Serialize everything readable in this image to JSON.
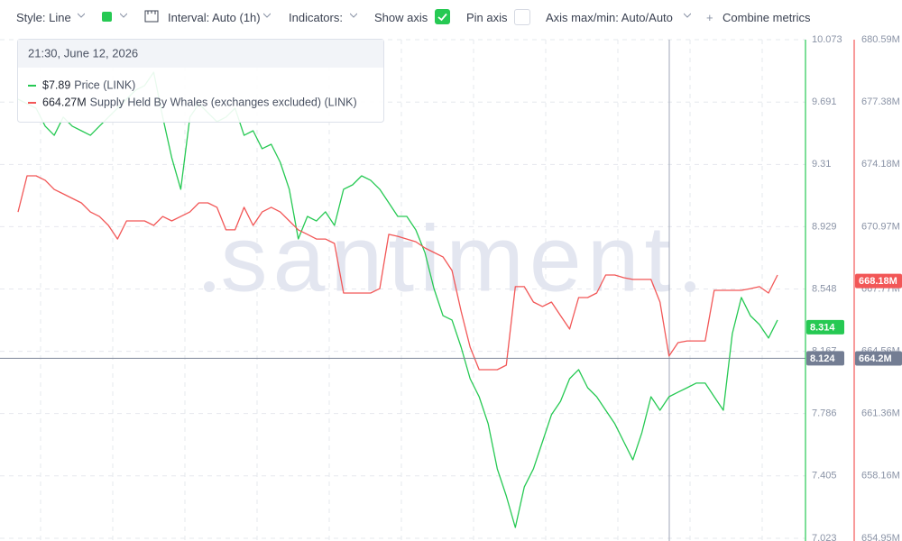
{
  "toolbar": {
    "style": "Style: Line",
    "interval": "Interval: Auto (1h)",
    "indicators": "Indicators:",
    "show_axis": "Show axis",
    "pin_axis": "Pin axis",
    "axis_max_min": "Axis max/min: Auto/Auto",
    "combine_metrics": "Combine metrics"
  },
  "chart_data": {
    "type": "line",
    "watermark": "santiment",
    "grid": true,
    "ylim": [
      7.023,
      10.073
    ],
    "yticks": [
      10.073,
      9.691,
      9.31,
      8.929,
      8.548,
      8.167,
      7.786,
      7.405,
      7.023
    ],
    "y2lim": [
      654.95,
      680.59
    ],
    "y2ticks": [
      {
        "value": 680.59,
        "label": "680.59M"
      },
      {
        "value": 677.38,
        "label": "677.38M"
      },
      {
        "value": 674.18,
        "label": "674.18M"
      },
      {
        "value": 670.97,
        "label": "670.97M"
      },
      {
        "value": 667.77,
        "label": "667.77M"
      },
      {
        "value": 664.56,
        "label": "664.56M"
      },
      {
        "value": 661.36,
        "label": "661.36M"
      },
      {
        "value": 658.16,
        "label": "658.16M"
      },
      {
        "value": 654.95,
        "label": "654.95M"
      }
    ],
    "series": [
      {
        "name": "Price (LINK)",
        "color": "#26c953",
        "values": [
          9.709,
          9.681,
          9.654,
          9.544,
          9.488,
          9.599,
          9.544,
          9.516,
          9.488,
          9.544,
          9.599,
          9.654,
          9.709,
          9.764,
          9.792,
          9.874,
          9.599,
          9.351,
          9.158,
          9.599,
          9.681,
          9.626,
          9.571,
          9.599,
          9.654,
          9.488,
          9.516,
          9.406,
          9.433,
          9.323,
          9.158,
          8.854,
          8.992,
          8.964,
          9.02,
          8.937,
          9.158,
          9.185,
          9.24,
          9.213,
          9.158,
          9.075,
          8.992,
          8.992,
          8.909,
          8.771,
          8.551,
          8.385,
          8.358,
          8.192,
          7.999,
          7.889,
          7.724,
          7.448,
          7.282,
          7.089,
          7.338,
          7.448,
          7.613,
          7.779,
          7.861,
          7.999,
          8.055,
          7.944,
          7.889,
          7.806,
          7.724,
          7.613,
          7.503,
          7.669,
          7.889,
          7.806,
          7.889,
          7.917,
          7.944,
          7.972,
          7.972,
          7.889,
          7.806,
          8.275,
          8.496,
          8.385,
          8.33,
          8.248,
          8.358
        ]
      },
      {
        "name": "Supply Held By Whales (exchanges excluded) (LINK)",
        "color": "#f25757",
        "axis": "y2",
        "values": [
          671.73,
          673.59,
          673.59,
          673.36,
          672.89,
          672.66,
          672.43,
          672.2,
          671.73,
          671.5,
          671.04,
          670.34,
          671.27,
          671.27,
          671.27,
          671.04,
          671.5,
          671.27,
          671.5,
          671.73,
          672.2,
          672.2,
          671.97,
          670.81,
          670.81,
          671.97,
          671.04,
          671.73,
          671.97,
          671.73,
          671.27,
          670.81,
          670.58,
          670.34,
          670.34,
          670.11,
          667.56,
          667.56,
          667.56,
          667.56,
          667.79,
          670.58,
          670.48,
          670.34,
          670.2,
          669.88,
          669.65,
          669.42,
          668.72,
          666.63,
          664.78,
          663.62,
          663.62,
          663.62,
          663.85,
          667.89,
          667.89,
          667.1,
          666.87,
          667.1,
          666.4,
          665.71,
          667.33,
          667.33,
          667.56,
          668.49,
          668.49,
          668.35,
          668.26,
          668.26,
          668.26,
          667.1,
          664.32,
          665.01,
          665.1,
          665.1,
          665.1,
          667.7,
          667.7,
          667.7,
          667.7,
          667.79,
          667.89,
          667.56,
          668.49
        ]
      }
    ],
    "axis_badges": [
      {
        "value": 8.314,
        "label": "8.314",
        "axis": "y",
        "color": "#26c953"
      },
      {
        "value": 8.124,
        "label": "8.124",
        "axis": "y",
        "color": "#737d93",
        "crosshair": true
      },
      {
        "value": 664.2,
        "label": "664.2M",
        "axis": "y2",
        "color": "#737d93"
      },
      {
        "value": 668.18,
        "label": "668.18M",
        "axis": "y2",
        "color": "#f25757"
      }
    ],
    "tooltip": {
      "time": "21:30, June 12, 2026",
      "values": [
        {
          "value": 7.89,
          "label": "$7.89"
        },
        {
          "value": 664.27,
          "label": "664.27M"
        }
      ]
    }
  }
}
